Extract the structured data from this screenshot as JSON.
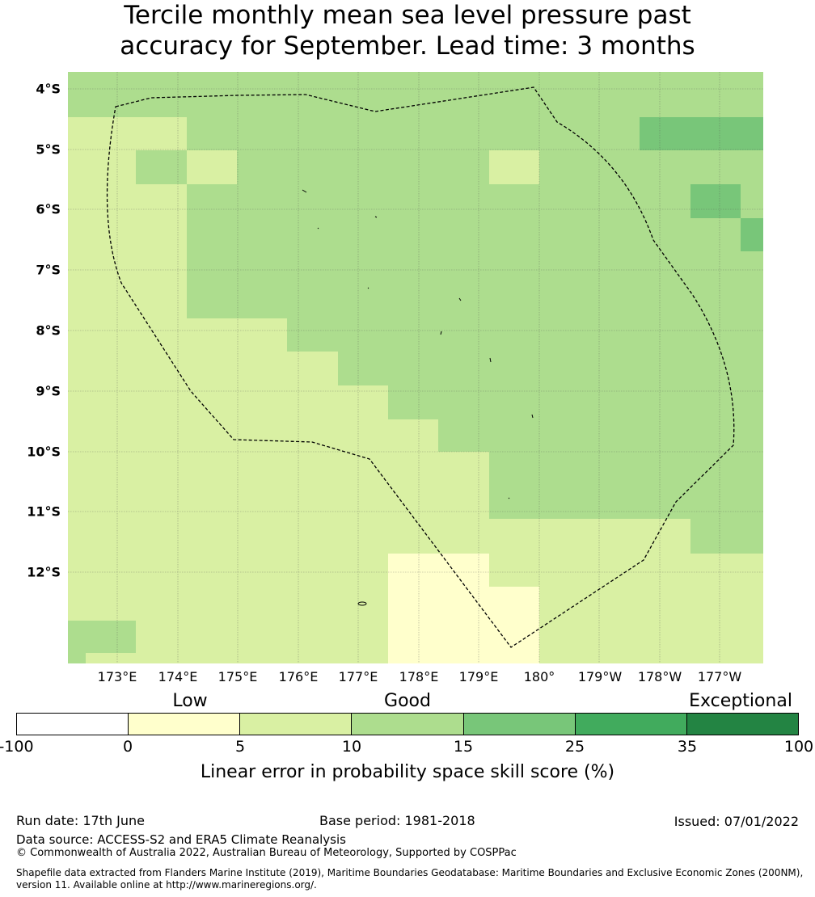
{
  "title_lines": [
    "Tercile monthly mean sea level pressure past",
    "accuracy for September. Lead time: 3 months"
  ],
  "map": {
    "lat_labels": [
      "4°S",
      "5°S",
      "6°S",
      "7°S",
      "8°S",
      "9°S",
      "10°S",
      "11°S",
      "12°S"
    ],
    "lon_labels": [
      "173°E",
      "174°E",
      "175°E",
      "176°E",
      "177°E",
      "178°E",
      "179°E",
      "180°",
      "179°W",
      "178°W",
      "177°W"
    ],
    "colors": {
      "cat0": "#ffffff",
      "cat1": "#ffffcc",
      "cat2": "#d9f0a3",
      "cat3": "#addd8e",
      "cat4": "#78c679",
      "cat5": "#41ab5d",
      "cat6": "#238443"
    },
    "skill_regions": [
      {
        "category": 3,
        "desc": "upper band"
      },
      {
        "category": 4,
        "desc": "east patches"
      },
      {
        "category": 1,
        "desc": "south patch"
      },
      {
        "category": 2,
        "desc": "west and south"
      }
    ]
  },
  "colorbar": {
    "categories": [
      "Low",
      "Good",
      "Exceptional"
    ],
    "ticks": [
      "-100",
      "0",
      "5",
      "10",
      "15",
      "25",
      "35",
      "100"
    ],
    "colors": [
      "#ffffff",
      "#ffffcc",
      "#d9f0a3",
      "#addd8e",
      "#78c679",
      "#41ab5d",
      "#238443"
    ],
    "label": "Linear error in probability space skill score (%)"
  },
  "footer": {
    "run_date": "Run date: 17th June",
    "base_period": "Base period: 1981-2018",
    "issued": "Issued: 07/01/2022",
    "data_source": "Data source: ACCESS-S2 and ERA5 Climate Reanalysis",
    "copyright": "© Commonwealth of Australia 2022, Australian Bureau of Meteorology, Supported by COSPPac",
    "shapefile_line1": "Shapefile data extracted from Flanders Marine Institute (2019), Maritime Boundaries Geodatabase: Maritime Boundaries and Exclusive Economic Zones (200NM),",
    "shapefile_line2": "version 11. Available online at http://www.marineregions.org/."
  }
}
